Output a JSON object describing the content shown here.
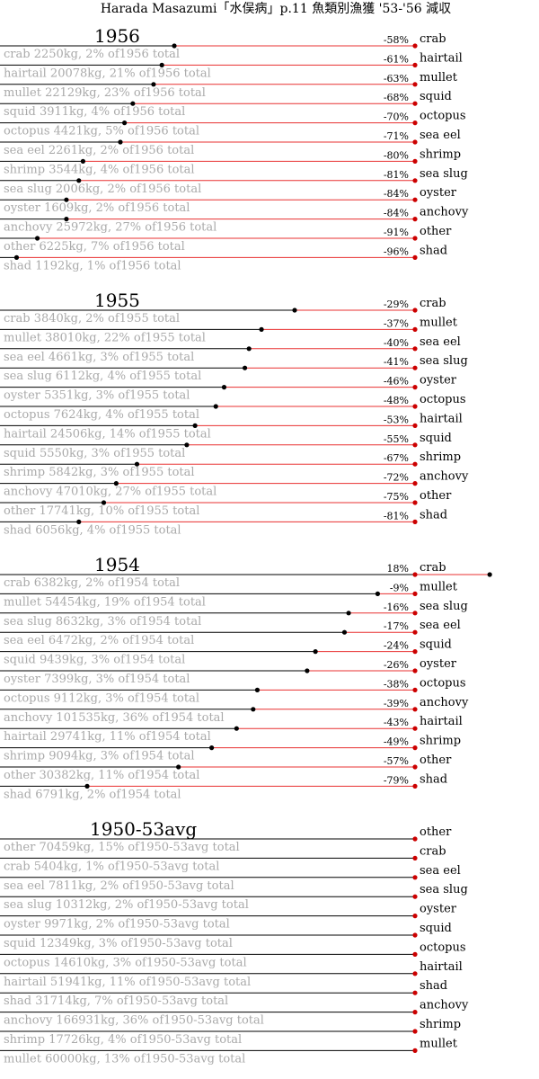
{
  "chart_data": {
    "type": "bar",
    "title": "Harada Masazumi「水俣病」p.11 魚類別漁獲 '53-'56 減収",
    "panels": [
      {
        "year": "1956",
        "rows": [
          {
            "species": "crab",
            "kg": 2250,
            "pct_label": "-58%",
            "desc": "crab 2250kg, 2% of1956 total"
          },
          {
            "species": "hairtail",
            "kg": 20078,
            "pct_label": "-61%",
            "desc": "hairtail 20078kg, 21% of1956 total"
          },
          {
            "species": "mullet",
            "kg": 22129,
            "pct_label": "-63%",
            "desc": "mullet 22129kg, 23% of1956 total"
          },
          {
            "species": "squid",
            "kg": 3911,
            "pct_label": "-68%",
            "desc": "squid 3911kg, 4% of1956 total"
          },
          {
            "species": "octopus",
            "kg": 4421,
            "pct_label": "-70%",
            "desc": "octopus 4421kg, 5% of1956 total"
          },
          {
            "species": "sea eel",
            "kg": 2261,
            "pct_label": "-71%",
            "desc": "sea eel 2261kg, 2% of1956 total"
          },
          {
            "species": "shrimp",
            "kg": 3544,
            "pct_label": "-80%",
            "desc": "shrimp 3544kg, 4% of1956 total"
          },
          {
            "species": "sea slug",
            "kg": 2006,
            "pct_label": "-81%",
            "desc": "sea slug 2006kg, 2% of1956 total"
          },
          {
            "species": "oyster",
            "kg": 1609,
            "pct_label": "-84%",
            "desc": "oyster 1609kg, 2% of1956 total"
          },
          {
            "species": "anchovy",
            "kg": 25972,
            "pct_label": "-84%",
            "desc": "anchovy 25972kg, 27% of1956 total"
          },
          {
            "species": "other",
            "kg": 6225,
            "pct_label": "-91%",
            "desc": "other 6225kg, 7% of1956 total"
          },
          {
            "species": "shad",
            "kg": 1192,
            "pct_label": "-96%",
            "desc": "shad 1192kg, 1% of1956 total"
          }
        ]
      },
      {
        "year": "1955",
        "rows": [
          {
            "species": "crab",
            "kg": 3840,
            "pct_label": "-29%",
            "desc": "crab 3840kg, 2% of1955 total"
          },
          {
            "species": "mullet",
            "kg": 38010,
            "pct_label": "-37%",
            "desc": "mullet 38010kg, 22% of1955 total"
          },
          {
            "species": "sea eel",
            "kg": 4661,
            "pct_label": "-40%",
            "desc": "sea eel 4661kg, 3% of1955 total"
          },
          {
            "species": "sea slug",
            "kg": 6112,
            "pct_label": "-41%",
            "desc": "sea slug 6112kg, 4% of1955 total"
          },
          {
            "species": "oyster",
            "kg": 5351,
            "pct_label": "-46%",
            "desc": "oyster 5351kg, 3% of1955 total"
          },
          {
            "species": "octopus",
            "kg": 7624,
            "pct_label": "-48%",
            "desc": "octopus 7624kg, 4% of1955 total"
          },
          {
            "species": "hairtail",
            "kg": 24506,
            "pct_label": "-53%",
            "desc": "hairtail 24506kg, 14% of1955 total"
          },
          {
            "species": "squid",
            "kg": 5550,
            "pct_label": "-55%",
            "desc": "squid 5550kg, 3% of1955 total"
          },
          {
            "species": "shrimp",
            "kg": 5842,
            "pct_label": "-67%",
            "desc": "shrimp 5842kg, 3% of1955 total"
          },
          {
            "species": "anchovy",
            "kg": 47010,
            "pct_label": "-72%",
            "desc": "anchovy 47010kg, 27% of1955 total"
          },
          {
            "species": "other",
            "kg": 17741,
            "pct_label": "-75%",
            "desc": "other 17741kg, 10% of1955 total"
          },
          {
            "species": "shad",
            "kg": 6056,
            "pct_label": "-81%",
            "desc": "shad 6056kg, 4% of1955 total"
          }
        ]
      },
      {
        "year": "1954",
        "rows": [
          {
            "species": "crab",
            "kg": 6382,
            "pct_label": "18%",
            "desc": "crab 6382kg, 2% of1954 total"
          },
          {
            "species": "mullet",
            "kg": 54454,
            "pct_label": "-9%",
            "desc": "mullet 54454kg, 19% of1954 total"
          },
          {
            "species": "sea slug",
            "kg": 8632,
            "pct_label": "-16%",
            "desc": "sea slug 8632kg, 3% of1954 total"
          },
          {
            "species": "sea eel",
            "kg": 6472,
            "pct_label": "-17%",
            "desc": "sea eel 6472kg, 2% of1954 total"
          },
          {
            "species": "squid",
            "kg": 9439,
            "pct_label": "-24%",
            "desc": "squid 9439kg, 3% of1954 total"
          },
          {
            "species": "oyster",
            "kg": 7399,
            "pct_label": "-26%",
            "desc": "oyster 7399kg, 3% of1954 total"
          },
          {
            "species": "octopus",
            "kg": 9112,
            "pct_label": "-38%",
            "desc": "octopus 9112kg, 3% of1954 total"
          },
          {
            "species": "anchovy",
            "kg": 101535,
            "pct_label": "-39%",
            "desc": "anchovy 101535kg, 36% of1954 total"
          },
          {
            "species": "hairtail",
            "kg": 29741,
            "pct_label": "-43%",
            "desc": "hairtail 29741kg, 11% of1954 total"
          },
          {
            "species": "shrimp",
            "kg": 9094,
            "pct_label": "-49%",
            "desc": "shrimp 9094kg, 3% of1954 total"
          },
          {
            "species": "other",
            "kg": 30382,
            "pct_label": "-57%",
            "desc": "other 30382kg, 11% of1954 total"
          },
          {
            "species": "shad",
            "kg": 6791,
            "pct_label": "-79%",
            "desc": "shad 6791kg, 2% of1954 total"
          }
        ]
      },
      {
        "year": "1950-53avg",
        "rows": [
          {
            "species": "other",
            "kg": 70459,
            "pct_label": "",
            "desc": "other 70459kg, 15% of1950-53avg total"
          },
          {
            "species": "crab",
            "kg": 5404,
            "pct_label": "",
            "desc": "crab 5404kg, 1% of1950-53avg total"
          },
          {
            "species": "sea eel",
            "kg": 7811,
            "pct_label": "",
            "desc": "sea eel 7811kg, 2% of1950-53avg total"
          },
          {
            "species": "sea slug",
            "kg": 10312,
            "pct_label": "",
            "desc": "sea slug 10312kg, 2% of1950-53avg total"
          },
          {
            "species": "oyster",
            "kg": 9971,
            "pct_label": "",
            "desc": "oyster 9971kg, 2% of1950-53avg total"
          },
          {
            "species": "squid",
            "kg": 12349,
            "pct_label": "",
            "desc": "squid 12349kg, 3% of1950-53avg total"
          },
          {
            "species": "octopus",
            "kg": 14610,
            "pct_label": "",
            "desc": "octopus 14610kg, 3% of1950-53avg total"
          },
          {
            "species": "hairtail",
            "kg": 51941,
            "pct_label": "",
            "desc": "hairtail 51941kg, 11% of1950-53avg total"
          },
          {
            "species": "shad",
            "kg": 31714,
            "pct_label": "",
            "desc": "shad 31714kg, 7% of1950-53avg total"
          },
          {
            "species": "anchovy",
            "kg": 166931,
            "pct_label": "",
            "desc": "anchovy 166931kg, 36% of1950-53avg total"
          },
          {
            "species": "shrimp",
            "kg": 17726,
            "pct_label": "",
            "desc": "shrimp 17726kg, 4% of1950-53avg total"
          },
          {
            "species": "mullet",
            "kg": 60000,
            "pct_label": "",
            "desc": "mullet 60000kg, 13% of1950-53avg total"
          }
        ]
      }
    ],
    "colors": {
      "reference_dot": "#cc0000",
      "change_line": "#e83030",
      "baseline": "#000000",
      "desc_text": "#aaaaaa"
    }
  }
}
